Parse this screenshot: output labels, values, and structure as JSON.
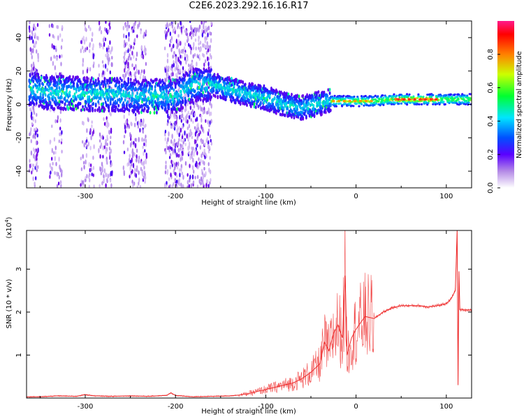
{
  "page": {
    "title": "C2E6.2023.292.16.16.R17"
  },
  "chart_data": [
    {
      "type": "heatmap",
      "xlabel": "Height of straight line (km)",
      "ylabel": "Frequency (Hz)",
      "xlim": [
        -365,
        128
      ],
      "ylim": [
        -50,
        50
      ],
      "x_ticks": [
        -300,
        -200,
        -100,
        0,
        100
      ],
      "x_tick_labels": [
        "-300",
        "-200",
        "-100",
        "0",
        "100"
      ],
      "y_ticks": [
        -40,
        -20,
        0,
        20,
        40
      ],
      "y_tick_labels": [
        "-40",
        "-20",
        "0",
        "20",
        "40"
      ],
      "ridge": {
        "x": [
          -360,
          -340,
          -320,
          -300,
          -280,
          -260,
          -240,
          -220,
          -200,
          -180,
          -160,
          -140,
          -120,
          -100,
          -80,
          -60,
          -45,
          -30,
          -20,
          0,
          20,
          40,
          60,
          80,
          100,
          128
        ],
        "freq": [
          9,
          7,
          7,
          6,
          6,
          6,
          5,
          5,
          5,
          12,
          12,
          9,
          6,
          4,
          0,
          -2,
          0,
          2,
          2,
          2,
          2,
          3,
          3,
          3,
          3,
          3
        ]
      },
      "colorbar": {
        "label": "Normalized spectral amplitude",
        "range": [
          0,
          1
        ],
        "ticks": [
          0.0,
          0.2,
          0.4,
          0.6,
          0.8
        ],
        "tick_labels": [
          "0.0",
          "0.2",
          "0.4",
          "0.6",
          "0.8"
        ],
        "colors": [
          "#ffffff",
          "#d6c2f0",
          "#8a2be2",
          "#3a00ff",
          "#0064ff",
          "#00ffff",
          "#00ff40",
          "#ffff00",
          "#ff7f00",
          "#ff0000",
          "#ff1493"
        ]
      }
    },
    {
      "type": "line",
      "xlabel": "Height of straight line (km)",
      "ylabel": "SNR (10 * v/v)",
      "y_multiplier": "(x10",
      "y_multiplier_exp": "4",
      "y_multiplier_close": ")",
      "xlim": [
        -365,
        128
      ],
      "ylim": [
        0,
        3.9
      ],
      "x_ticks": [
        -300,
        -200,
        -100,
        0,
        100
      ],
      "x_tick_labels": [
        "-300",
        "-200",
        "-100",
        "0",
        "100"
      ],
      "y_ticks": [
        1,
        2,
        3
      ],
      "y_tick_labels": [
        "1",
        "2",
        "3"
      ],
      "series": [
        {
          "color": "#ee2b2b",
          "x": [
            -365,
            -350,
            -330,
            -310,
            -300,
            -290,
            -270,
            -250,
            -230,
            -210,
            -205,
            -200,
            -180,
            -160,
            -140,
            -130,
            -120,
            -110,
            -100,
            -90,
            -80,
            -70,
            -60,
            -50,
            -40,
            -35,
            -30,
            -25,
            -20,
            -15,
            -12,
            -10,
            -5,
            0,
            10,
            20,
            30,
            40,
            50,
            60,
            70,
            80,
            90,
            100,
            105,
            110,
            112,
            113,
            114,
            115,
            118,
            128
          ],
          "y": [
            0.03,
            0.03,
            0.05,
            0.04,
            0.08,
            0.05,
            0.04,
            0.05,
            0.04,
            0.06,
            0.12,
            0.06,
            0.03,
            0.04,
            0.05,
            0.07,
            0.1,
            0.15,
            0.2,
            0.25,
            0.3,
            0.35,
            0.45,
            0.6,
            0.8,
            1.3,
            1.1,
            1.5,
            1.7,
            1.4,
            2.85,
            1.0,
            1.4,
            1.6,
            1.9,
            1.85,
            2.0,
            2.1,
            2.15,
            2.15,
            2.15,
            2.12,
            2.15,
            2.2,
            2.3,
            2.5,
            3.9,
            0.3,
            2.95,
            2.05,
            2.05,
            2.05
          ]
        }
      ]
    }
  ]
}
